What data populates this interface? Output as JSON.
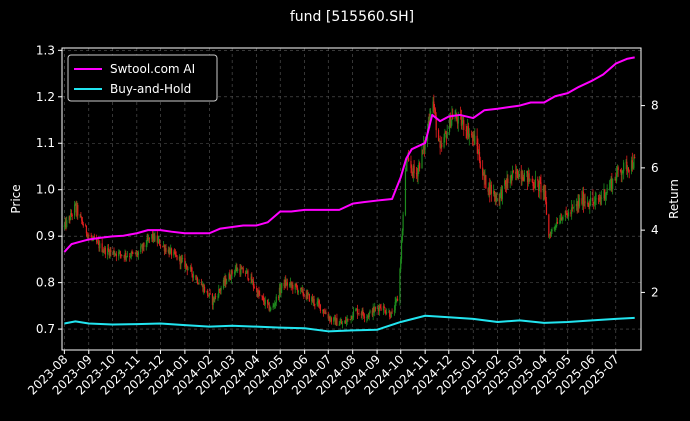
{
  "chart_data": {
    "type": "line",
    "title": "fund [515560.SH]",
    "ylabel_left": "Price",
    "ylabel_right": "Return",
    "xlabel": "",
    "ylim_left": [
      0.655,
      1.305
    ],
    "ylim_right": [
      0.15,
      9.85
    ],
    "grid": true,
    "legend_position": "top-left",
    "background": "#000000",
    "left_ticks": [
      "0.7",
      "0.8",
      "0.9",
      "1.0",
      "1.1",
      "1.2",
      "1.3"
    ],
    "right_ticks": [
      "2",
      "4",
      "6",
      "8"
    ],
    "x_ticks": [
      "2023-08",
      "2023-09",
      "2023-10",
      "2023-11",
      "2023-12",
      "2024-01",
      "2024-02",
      "2024-03",
      "2024-04",
      "2024-05",
      "2024-06",
      "2024-07",
      "2024-08",
      "2024-09",
      "2024-10",
      "2024-11",
      "2024-12",
      "2025-01",
      "2025-02",
      "2025-03",
      "2025-04",
      "2025-05",
      "2025-06",
      "2025-07"
    ],
    "series": [
      {
        "name": "Swtool.com AI",
        "axis": "right",
        "color": "#ff00ff",
        "points": [
          [
            "2023-08-01",
            3.3
          ],
          [
            "2023-08-10",
            3.55
          ],
          [
            "2023-08-20",
            3.62
          ],
          [
            "2023-09-01",
            3.7
          ],
          [
            "2023-09-15",
            3.75
          ],
          [
            "2023-10-01",
            3.8
          ],
          [
            "2023-10-15",
            3.82
          ],
          [
            "2023-11-01",
            3.9
          ],
          [
            "2023-11-15",
            4.0
          ],
          [
            "2023-12-01",
            4.0
          ],
          [
            "2023-12-15",
            3.95
          ],
          [
            "2024-01-01",
            3.9
          ],
          [
            "2024-01-15",
            3.9
          ],
          [
            "2024-02-01",
            3.9
          ],
          [
            "2024-02-15",
            4.05
          ],
          [
            "2024-03-01",
            4.1
          ],
          [
            "2024-03-15",
            4.15
          ],
          [
            "2024-04-01",
            4.15
          ],
          [
            "2024-04-15",
            4.25
          ],
          [
            "2024-05-01",
            4.6
          ],
          [
            "2024-05-15",
            4.6
          ],
          [
            "2024-06-01",
            4.65
          ],
          [
            "2024-06-15",
            4.65
          ],
          [
            "2024-07-01",
            4.65
          ],
          [
            "2024-07-15",
            4.65
          ],
          [
            "2024-08-01",
            4.85
          ],
          [
            "2024-08-15",
            4.9
          ],
          [
            "2024-09-01",
            4.95
          ],
          [
            "2024-09-20",
            5.0
          ],
          [
            "2024-10-01",
            5.7
          ],
          [
            "2024-10-08",
            6.3
          ],
          [
            "2024-10-15",
            6.6
          ],
          [
            "2024-11-01",
            6.8
          ],
          [
            "2024-11-10",
            7.7
          ],
          [
            "2024-11-20",
            7.5
          ],
          [
            "2024-12-01",
            7.65
          ],
          [
            "2024-12-15",
            7.7
          ],
          [
            "2025-01-01",
            7.6
          ],
          [
            "2025-01-15",
            7.85
          ],
          [
            "2025-02-01",
            7.9
          ],
          [
            "2025-02-15",
            7.95
          ],
          [
            "2025-03-01",
            8.0
          ],
          [
            "2025-03-15",
            8.1
          ],
          [
            "2025-04-01",
            8.1
          ],
          [
            "2025-04-15",
            8.3
          ],
          [
            "2025-05-01",
            8.4
          ],
          [
            "2025-05-15",
            8.6
          ],
          [
            "2025-06-01",
            8.8
          ],
          [
            "2025-06-15",
            9.0
          ],
          [
            "2025-07-01",
            9.35
          ],
          [
            "2025-07-15",
            9.5
          ],
          [
            "2025-07-25",
            9.55
          ]
        ]
      },
      {
        "name": "Buy-and-Hold",
        "axis": "right",
        "color": "#22e5f0",
        "points": [
          [
            "2023-08-01",
            1.0
          ],
          [
            "2023-08-15",
            1.07
          ],
          [
            "2023-09-01",
            1.0
          ],
          [
            "2023-10-01",
            0.97
          ],
          [
            "2023-11-01",
            0.98
          ],
          [
            "2023-12-01",
            1.0
          ],
          [
            "2024-01-01",
            0.95
          ],
          [
            "2024-02-01",
            0.9
          ],
          [
            "2024-03-01",
            0.93
          ],
          [
            "2024-04-01",
            0.9
          ],
          [
            "2024-05-01",
            0.87
          ],
          [
            "2024-06-01",
            0.85
          ],
          [
            "2024-07-01",
            0.75
          ],
          [
            "2024-08-01",
            0.78
          ],
          [
            "2024-09-01",
            0.8
          ],
          [
            "2024-10-01",
            1.05
          ],
          [
            "2024-11-01",
            1.25
          ],
          [
            "2024-12-01",
            1.2
          ],
          [
            "2025-01-01",
            1.15
          ],
          [
            "2025-02-01",
            1.05
          ],
          [
            "2025-03-01",
            1.1
          ],
          [
            "2025-04-01",
            1.02
          ],
          [
            "2025-05-01",
            1.05
          ],
          [
            "2025-06-01",
            1.1
          ],
          [
            "2025-07-01",
            1.15
          ],
          [
            "2025-07-25",
            1.18
          ]
        ]
      }
    ],
    "price_bars": {
      "axis": "left",
      "up_color": "#1e8c1e",
      "down_color": "#e01e1e",
      "anchors": [
        [
          "2023-08-01",
          0.92
        ],
        [
          "2023-08-15",
          0.96
        ],
        [
          "2023-09-01",
          0.9
        ],
        [
          "2023-09-20",
          0.87
        ],
        [
          "2023-10-15",
          0.86
        ],
        [
          "2023-11-01",
          0.86
        ],
        [
          "2023-11-20",
          0.9
        ],
        [
          "2023-12-10",
          0.87
        ],
        [
          "2024-01-01",
          0.84
        ],
        [
          "2024-01-20",
          0.8
        ],
        [
          "2024-02-05",
          0.76
        ],
        [
          "2024-02-20",
          0.8
        ],
        [
          "2024-03-05",
          0.83
        ],
        [
          "2024-03-20",
          0.82
        ],
        [
          "2024-04-05",
          0.77
        ],
        [
          "2024-04-20",
          0.74
        ],
        [
          "2024-05-05",
          0.8
        ],
        [
          "2024-05-20",
          0.79
        ],
        [
          "2024-06-05",
          0.77
        ],
        [
          "2024-06-20",
          0.75
        ],
        [
          "2024-07-05",
          0.72
        ],
        [
          "2024-07-20",
          0.71
        ],
        [
          "2024-08-05",
          0.74
        ],
        [
          "2024-08-20",
          0.73
        ],
        [
          "2024-09-05",
          0.75
        ],
        [
          "2024-09-20",
          0.73
        ],
        [
          "2024-09-28",
          0.77
        ],
        [
          "2024-10-08",
          1.06
        ],
        [
          "2024-10-20",
          1.03
        ],
        [
          "2024-11-01",
          1.1
        ],
        [
          "2024-11-10",
          1.2
        ],
        [
          "2024-11-20",
          1.08
        ],
        [
          "2024-12-05",
          1.16
        ],
        [
          "2024-12-20",
          1.14
        ],
        [
          "2025-01-05",
          1.1
        ],
        [
          "2025-01-15",
          1.02
        ],
        [
          "2025-02-01",
          0.98
        ],
        [
          "2025-02-15",
          1.02
        ],
        [
          "2025-03-01",
          1.04
        ],
        [
          "2025-03-15",
          1.02
        ],
        [
          "2025-04-01",
          1.0
        ],
        [
          "2025-04-07",
          0.9
        ],
        [
          "2025-04-20",
          0.94
        ],
        [
          "2025-05-05",
          0.95
        ],
        [
          "2025-05-20",
          0.98
        ],
        [
          "2025-06-05",
          0.97
        ],
        [
          "2025-06-20",
          1.0
        ],
        [
          "2025-07-05",
          1.04
        ],
        [
          "2025-07-25",
          1.06
        ]
      ]
    }
  }
}
